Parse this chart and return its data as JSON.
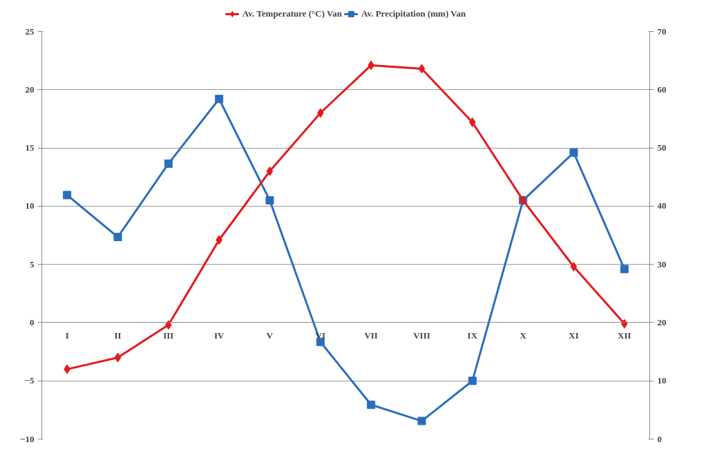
{
  "chart_data": {
    "type": "line",
    "categories": [
      "I",
      "II",
      "III",
      "IV",
      "V",
      "VI",
      "VII",
      "VIII",
      "IX",
      "X",
      "XI",
      "XII"
    ],
    "series": [
      {
        "name": "Av. Temperature (°C) Van",
        "color": "#e31a1c",
        "marker": "diamond",
        "values": [
          -4.0,
          -3.0,
          -0.2,
          7.1,
          13.0,
          18.0,
          22.1,
          21.8,
          17.2,
          10.5,
          4.8,
          -0.1
        ]
      },
      {
        "name": "Av. Precipitation (mm) Van",
        "color": "#2a6ebb",
        "marker": "square",
        "axis": "y2",
        "values": [
          41.9,
          34.7,
          47.3,
          58.4,
          41.0,
          16.7,
          5.9,
          3.1,
          10.0,
          41.0,
          49.2,
          29.2
        ]
      }
    ],
    "ylim": [
      -10,
      25
    ],
    "yticks": [
      -10,
      -5,
      0,
      5,
      10,
      15,
      20,
      25
    ],
    "y2lim": [
      0,
      70
    ],
    "y2ticks": [
      0,
      10,
      20,
      30,
      40,
      50,
      60,
      70
    ],
    "grid": "y",
    "legend": "top",
    "line_style": "solid"
  }
}
